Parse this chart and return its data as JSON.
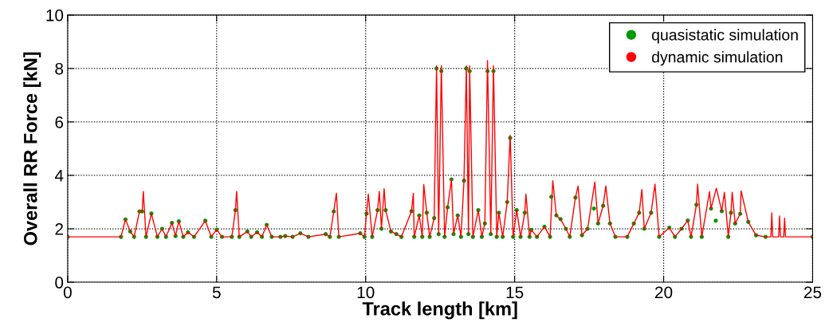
{
  "chart_data": {
    "type": "line",
    "xlabel": "Track length [km]",
    "ylabel": "Overall RR Force [kN]",
    "xlim": [
      0,
      25
    ],
    "xticks": [
      0,
      5,
      10,
      15,
      20,
      25
    ],
    "ylim": [
      0,
      10
    ],
    "yticks": [
      0,
      2,
      4,
      6,
      8,
      10
    ],
    "grid": true,
    "legend": "top right",
    "series": [
      {
        "name": "quasistatic simulation",
        "type": "scatter",
        "color": "#009900",
        "x": [
          0,
          1.79,
          1.94,
          2.1,
          2.23,
          2.41,
          2.5,
          2.63,
          2.81,
          3.01,
          3.17,
          3.3,
          3.5,
          3.62,
          3.73,
          3.88,
          4.04,
          4.24,
          4.62,
          4.82,
          5.0,
          5.18,
          5.51,
          5.63,
          5.76,
          6.03,
          6.16,
          6.36,
          6.52,
          6.68,
          6.85,
          7.14,
          7.3,
          7.55,
          7.81,
          8.08,
          8.66,
          8.8,
          8.93,
          9.1,
          9.82,
          9.96,
          10.03,
          10.22,
          10.4,
          10.53,
          10.67,
          10.85,
          11.03,
          11.2,
          11.54,
          11.63,
          11.8,
          11.9,
          12.05,
          12.15,
          12.3,
          12.38,
          12.45,
          12.54,
          12.65,
          12.75,
          12.88,
          12.95,
          13.09,
          13.2,
          13.3,
          13.38,
          13.45,
          13.49,
          13.6,
          13.78,
          13.9,
          14.0,
          14.09,
          14.2,
          14.29,
          14.4,
          14.47,
          14.6,
          14.75,
          14.85,
          14.95,
          15.07,
          15.2,
          15.34,
          15.5,
          15.56,
          15.75,
          16.0,
          16.19,
          16.23,
          16.4,
          16.54,
          16.72,
          16.85,
          17.04,
          17.26,
          17.45,
          17.66,
          17.8,
          17.97,
          18.2,
          18.38,
          18.78,
          19.0,
          19.18,
          19.35,
          19.58,
          19.85,
          20.19,
          20.38,
          20.6,
          20.81,
          20.92,
          21.1,
          21.28,
          21.59,
          21.75,
          21.95,
          22.17,
          22.26,
          22.4,
          22.57,
          22.84,
          23.1,
          23.42,
          25
        ],
        "values": [
          1.7,
          1.7,
          2.35,
          1.9,
          1.7,
          2.65,
          2.65,
          1.7,
          2.57,
          1.7,
          2.0,
          1.7,
          2.22,
          1.73,
          2.28,
          1.7,
          1.87,
          1.7,
          2.3,
          1.7,
          1.97,
          1.7,
          1.7,
          2.7,
          1.7,
          1.9,
          1.7,
          1.87,
          1.7,
          2.15,
          1.7,
          1.7,
          1.73,
          1.7,
          1.83,
          1.7,
          1.8,
          1.7,
          2.65,
          1.7,
          1.83,
          1.7,
          2.57,
          1.7,
          2.7,
          2.0,
          2.7,
          1.9,
          1.8,
          1.7,
          2.66,
          1.7,
          2.5,
          1.7,
          2.6,
          1.7,
          2.4,
          8.0,
          1.8,
          7.9,
          1.7,
          2.8,
          3.85,
          1.8,
          2.5,
          1.7,
          3.8,
          8.0,
          1.8,
          7.9,
          1.7,
          2.7,
          1.7,
          2.2,
          7.9,
          1.8,
          7.9,
          1.7,
          2.6,
          1.7,
          3.0,
          5.4,
          1.7,
          2.7,
          1.7,
          2.6,
          1.7,
          1.96,
          1.7,
          2.08,
          1.7,
          3.2,
          2.5,
          2.36,
          2.0,
          1.7,
          3.17,
          1.76,
          2.0,
          2.76,
          2.2,
          2.86,
          2.2,
          1.7,
          1.7,
          2.2,
          2.6,
          2.0,
          2.6,
          1.7,
          2.04,
          1.7,
          2.0,
          2.31,
          1.7,
          2.9,
          1.7,
          2.76,
          2.3,
          2.66,
          1.7,
          2.6,
          2.2,
          2.56,
          2.26,
          1.76,
          1.7,
          1.7
        ]
      },
      {
        "name": "dynamic simulation",
        "color": "#ff0000",
        "x": [
          0,
          1.79,
          1.94,
          2.1,
          2.23,
          2.41,
          2.5,
          2.54,
          2.63,
          2.81,
          3.01,
          3.17,
          3.3,
          3.5,
          3.62,
          3.73,
          3.88,
          4.04,
          4.24,
          4.62,
          4.82,
          5.0,
          5.18,
          5.51,
          5.63,
          5.67,
          5.76,
          6.03,
          6.16,
          6.36,
          6.52,
          6.68,
          6.85,
          7.14,
          7.3,
          7.55,
          7.81,
          8.08,
          8.66,
          8.8,
          8.93,
          9.02,
          9.1,
          9.82,
          9.96,
          10.03,
          10.09,
          10.22,
          10.4,
          10.46,
          10.53,
          10.62,
          10.67,
          10.85,
          11.03,
          11.2,
          11.54,
          11.6,
          11.63,
          11.8,
          11.9,
          11.95,
          12.05,
          12.15,
          12.3,
          12.38,
          12.45,
          12.54,
          12.65,
          12.75,
          12.88,
          12.95,
          13.09,
          13.2,
          13.3,
          13.38,
          13.45,
          13.49,
          13.6,
          13.78,
          13.9,
          14.0,
          14.09,
          14.2,
          14.29,
          14.4,
          14.47,
          14.6,
          14.75,
          14.85,
          14.95,
          15.07,
          15.2,
          15.34,
          15.38,
          15.5,
          15.56,
          15.75,
          16.0,
          16.19,
          16.28,
          16.4,
          16.54,
          16.72,
          16.85,
          17.04,
          17.13,
          17.26,
          17.45,
          17.69,
          17.8,
          17.97,
          18.06,
          18.2,
          18.38,
          18.78,
          19.0,
          19.18,
          19.27,
          19.35,
          19.58,
          19.71,
          19.85,
          20.19,
          20.38,
          20.6,
          20.81,
          20.92,
          21.1,
          21.14,
          21.28,
          21.54,
          21.59,
          21.77,
          21.95,
          22.04,
          22.17,
          22.26,
          22.3,
          22.4,
          22.57,
          22.6,
          22.84,
          23.1,
          23.42,
          23.6,
          23.63,
          23.66,
          23.86,
          23.89,
          23.92,
          24.03,
          24.06,
          24.09,
          25
        ],
        "values": [
          1.7,
          1.7,
          2.35,
          1.9,
          1.7,
          2.65,
          2.65,
          3.4,
          1.7,
          2.57,
          1.7,
          2.0,
          1.7,
          2.22,
          1.73,
          2.28,
          1.7,
          1.87,
          1.7,
          2.3,
          1.7,
          1.97,
          1.7,
          1.7,
          2.7,
          3.4,
          1.7,
          1.9,
          1.7,
          1.87,
          1.7,
          2.15,
          1.7,
          1.7,
          1.73,
          1.7,
          1.83,
          1.7,
          1.8,
          1.7,
          2.65,
          3.33,
          1.7,
          1.83,
          1.7,
          2.57,
          3.3,
          1.7,
          2.7,
          3.4,
          2.0,
          3.5,
          2.7,
          1.9,
          1.8,
          1.7,
          2.66,
          3.33,
          1.7,
          2.5,
          1.7,
          3.66,
          2.6,
          1.7,
          2.4,
          8.1,
          1.8,
          8.1,
          1.7,
          2.8,
          3.85,
          1.8,
          2.5,
          1.7,
          3.8,
          8.1,
          1.8,
          8.1,
          1.7,
          2.7,
          1.7,
          2.2,
          8.3,
          1.8,
          8.1,
          1.7,
          2.6,
          1.7,
          3.0,
          5.5,
          1.7,
          2.7,
          1.7,
          2.6,
          3.3,
          1.7,
          1.96,
          1.7,
          2.08,
          1.7,
          3.8,
          2.5,
          2.36,
          2.0,
          1.7,
          3.17,
          3.6,
          1.76,
          2.0,
          3.75,
          2.2,
          2.86,
          3.6,
          2.2,
          1.7,
          1.7,
          2.2,
          2.6,
          3.47,
          2.0,
          2.6,
          3.67,
          1.7,
          2.04,
          1.7,
          2.0,
          2.31,
          1.7,
          2.9,
          3.67,
          1.7,
          3.39,
          2.76,
          3.52,
          2.66,
          3.37,
          1.7,
          2.6,
          3.37,
          2.2,
          2.56,
          3.42,
          2.26,
          1.76,
          1.7,
          1.7,
          2.6,
          1.7,
          1.7,
          2.48,
          1.7,
          1.7,
          2.4,
          1.7,
          1.7
        ]
      }
    ]
  }
}
